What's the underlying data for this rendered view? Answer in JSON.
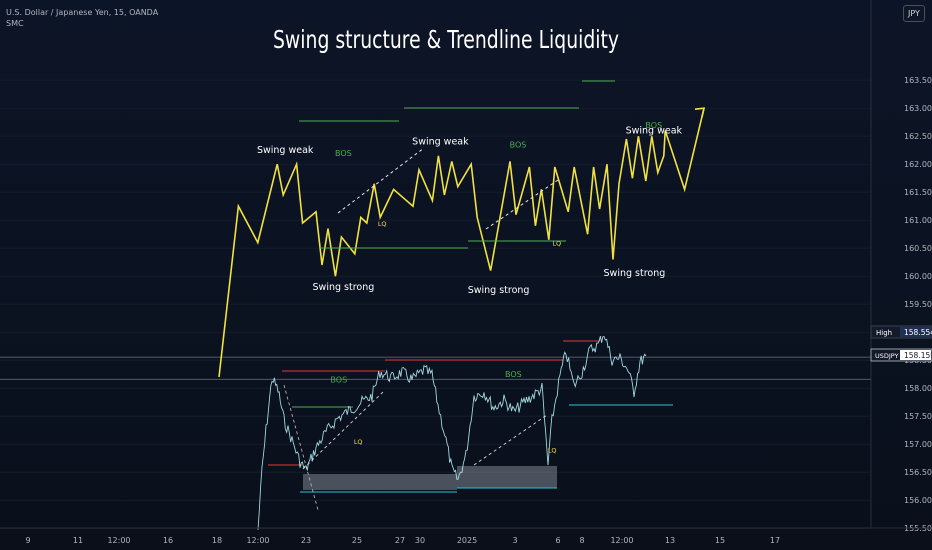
{
  "header": {
    "symbol_line": "U.S. Dollar / Japanese Yen, 15, OANDA",
    "indicator": "SMC"
  },
  "currency_badge": "JPY",
  "price_tags": {
    "high_label": "High",
    "high_value": "158.554",
    "symbol_label": "USDJPY",
    "last_value": "158.159"
  },
  "colors": {
    "background": "#0b1322",
    "diagram_line": "#f0e040",
    "price_line": "#b2ebf2",
    "bos_line": "#4caf50",
    "bos_text": "#4caf50",
    "red_level": "#e53935",
    "teal_level": "#26c6da",
    "liquidity_box": "#9aa0aa",
    "text": "#ffffff"
  },
  "chart_data": {
    "type": "line",
    "title": "Swing structure & Trendline Liquidity",
    "y_axis": {
      "ylim": [
        155.45,
        163.75
      ],
      "ticks": [
        "163.500",
        "163.000",
        "162.500",
        "162.000",
        "161.500",
        "161.000",
        "160.500",
        "160.000",
        "159.500",
        "159.000",
        "158.500",
        "158.000",
        "157.500",
        "157.000",
        "156.500",
        "156.000",
        "155.500"
      ]
    },
    "x_axis": {
      "ticks": [
        "9",
        "11",
        "12:00",
        "16",
        "18",
        "12:00",
        "23",
        "25",
        "27",
        "30",
        "2025",
        "3",
        "6",
        "8",
        "12:00",
        "13",
        "15",
        "17"
      ]
    },
    "reference_lines": [
      {
        "label": "High",
        "value": 158.554
      },
      {
        "label": "USDJPY",
        "value": 158.159
      }
    ],
    "diagram": {
      "series_points": [
        [
          "Dec 18",
          158.2
        ],
        [
          "Dec 19",
          161.25
        ],
        [
          "Dec 20",
          160.6
        ],
        [
          "Dec 21",
          162.0
        ],
        [
          "Dec 21",
          161.45
        ],
        [
          "Dec 22",
          162.0
        ],
        [
          "Dec 22",
          160.95
        ],
        [
          "Dec 23",
          161.15
        ],
        [
          "Dec 23",
          160.2
        ],
        [
          "Dec 23",
          160.85
        ],
        [
          "Dec 24",
          160.0
        ],
        [
          "Dec 24",
          160.7
        ],
        [
          "Dec 25",
          160.4
        ],
        [
          "Dec 25",
          161.05
        ],
        [
          "Dec 25",
          160.95
        ],
        [
          "Dec 26",
          161.65
        ],
        [
          "Dec 26",
          161.05
        ],
        [
          "Dec 27",
          161.55
        ],
        [
          "Dec 28",
          161.25
        ],
        [
          "Dec 28",
          161.9
        ],
        [
          "Dec 29",
          161.35
        ],
        [
          "Dec 29",
          162.15
        ],
        [
          "Dec 29",
          161.45
        ],
        [
          "Dec 30",
          162.05
        ],
        [
          "Dec 30",
          161.6
        ],
        [
          "Dec 31",
          162.0
        ],
        [
          "Dec 31",
          161.05
        ],
        [
          "Jan 1",
          160.1
        ],
        [
          "Jan 2",
          162.05
        ],
        [
          "Jan 2",
          161.1
        ],
        [
          "Jan 3",
          161.95
        ],
        [
          "Jan 3",
          160.9
        ],
        [
          "Jan 3",
          161.55
        ],
        [
          "Jan 4",
          160.65
        ],
        [
          "Jan 4",
          161.95
        ],
        [
          "Jan 5",
          161.15
        ],
        [
          "Jan 5",
          161.95
        ],
        [
          "Jan 6",
          160.75
        ],
        [
          "Jan 6",
          161.95
        ],
        [
          "Jan 6",
          161.2
        ],
        [
          "Jan 7",
          162.0
        ],
        [
          "Jan 7",
          160.3
        ],
        [
          "Jan 7",
          161.65
        ],
        [
          "Jan 8",
          162.45
        ],
        [
          "Jan 8",
          161.75
        ],
        [
          "Jan 8",
          162.5
        ],
        [
          "Jan 9",
          161.7
        ],
        [
          "Jan 9",
          162.5
        ],
        [
          "Jan 9",
          161.85
        ],
        [
          "Jan 9",
          162.15
        ],
        [
          "Jan 10",
          162.6
        ],
        [
          "Jan 11",
          161.55
        ],
        [
          "Jan 12",
          163.0
        ]
      ],
      "labels": [
        {
          "text": "Swing weak",
          "at": [
            "Dec 21",
            162.2
          ]
        },
        {
          "text": "BOS",
          "at": [
            "Dec 24",
            162.15
          ]
        },
        {
          "text": "Swing weak",
          "at": [
            "Dec 29",
            162.35
          ]
        },
        {
          "text": "BOS",
          "at": [
            "Jan 2",
            162.3
          ]
        },
        {
          "text": "Swing weak",
          "at": [
            "Jan 9",
            162.55
          ]
        },
        {
          "text": "BOS",
          "at": [
            "Jan 9",
            162.65
          ]
        },
        {
          "text": "Swing strong",
          "at": [
            "Dec 24",
            159.75
          ]
        },
        {
          "text": "Swing strong",
          "at": [
            "Jan 1",
            159.7
          ]
        },
        {
          "text": "Swing strong",
          "at": [
            "Jan 8",
            160.0
          ]
        },
        {
          "text": "LQ",
          "at": [
            "Dec 26",
            160.9
          ]
        },
        {
          "text": "LQ",
          "at": [
            "Jan 4",
            160.55
          ]
        }
      ]
    },
    "price_labels": [
      {
        "text": "BOS",
        "at": [
          "Dec 25",
          158.1
        ]
      },
      {
        "text": "BOS",
        "at": [
          "Jan 3",
          158.2
        ]
      },
      {
        "text": "LQ",
        "at": [
          "Dec 26",
          157.0
        ]
      },
      {
        "text": "LQ",
        "at": [
          "Jan 5",
          156.85
        ]
      }
    ]
  }
}
